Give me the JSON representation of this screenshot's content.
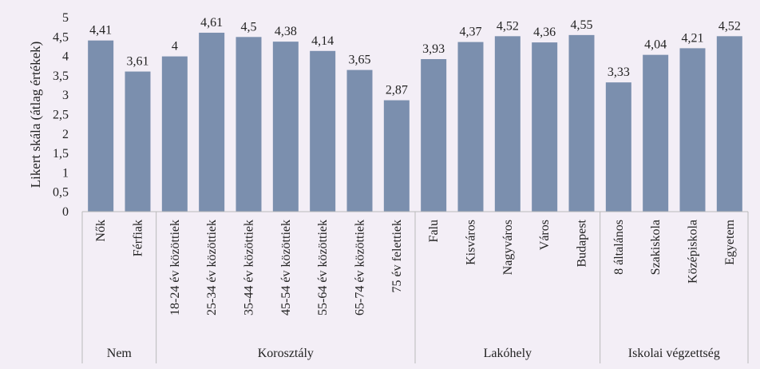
{
  "chart_data": {
    "type": "bar",
    "title": "",
    "ylabel": "Likert skála (átlag értékek)",
    "ylim": [
      0,
      5
    ],
    "yticks": [
      "0",
      "0,5",
      "1",
      "1,5",
      "2",
      "2,5",
      "3",
      "3,5",
      "4",
      "4,5",
      "5"
    ],
    "grid": false,
    "legend": "none",
    "bar_color": "#7b8fae",
    "groups": [
      {
        "name": "Nem",
        "categories": [
          "Nők",
          "Férfiak"
        ],
        "values": [
          4.41,
          3.61
        ],
        "labels": [
          "4,41",
          "3,61"
        ]
      },
      {
        "name": "Korosztály",
        "categories": [
          "18-24 év közöttiek",
          "25-34 év közöttiek",
          "35-44 év közöttiek",
          "45-54 év közöttiek",
          "55-64 év közöttiek",
          "65-74 év közöttiek",
          "75 év felettiek"
        ],
        "values": [
          4,
          4.61,
          4.5,
          4.38,
          4.14,
          3.65,
          2.87
        ],
        "labels": [
          "4",
          "4,61",
          "4,5",
          "4,38",
          "4,14",
          "3,65",
          "2,87"
        ]
      },
      {
        "name": "Lakóhely",
        "categories": [
          "Falu",
          "Kisváros",
          "Nagyváros",
          "Város",
          "Budapest"
        ],
        "values": [
          3.93,
          4.37,
          4.52,
          4.36,
          4.55
        ],
        "labels": [
          "3,93",
          "4,37",
          "4,52",
          "4,36",
          "4,55"
        ]
      },
      {
        "name": "Iskolai végzettség",
        "categories": [
          "8 általános",
          "Szakiskola",
          "Középiskola",
          "Egyetem"
        ],
        "values": [
          3.33,
          4.04,
          4.21,
          4.52
        ],
        "labels": [
          "3,33",
          "4,04",
          "4,21",
          "4,52"
        ]
      }
    ]
  }
}
